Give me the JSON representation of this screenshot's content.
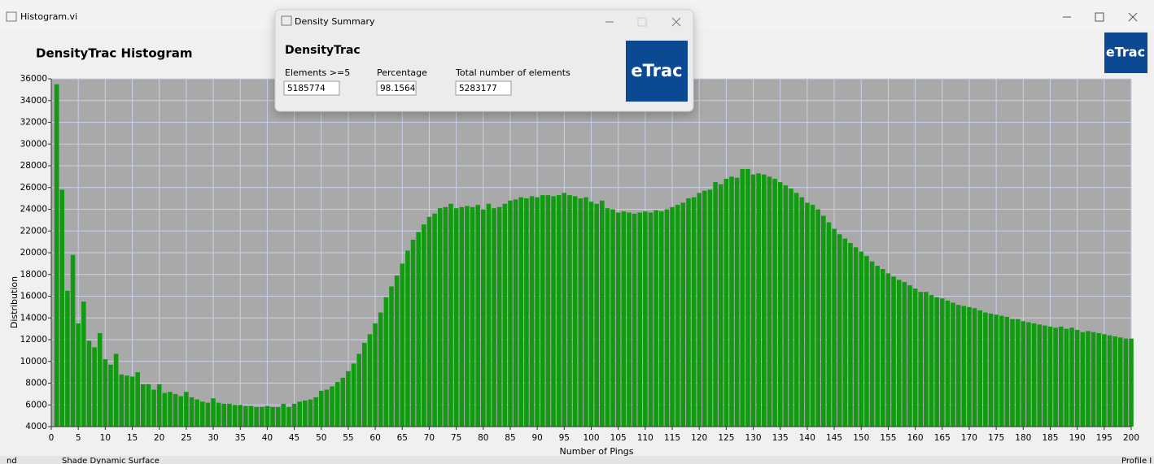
{
  "window": {
    "title": "Histogram.vi",
    "logo": "eTrac"
  },
  "dialog": {
    "title": "Density Summary",
    "heading": "DensityTrac",
    "logo": "eTrac",
    "fields": [
      {
        "label": "Elements >=5",
        "value": "5185774"
      },
      {
        "label": "Percentage",
        "value": "98.1564"
      },
      {
        "label": "Total number of elements",
        "value": "5283177"
      }
    ]
  },
  "statusbar": [
    "nd",
    "Shade Dynamic Surface",
    "Profile I"
  ],
  "chart_data": {
    "type": "bar",
    "title": "DensityTrac Histogram",
    "xlabel": "Number of Pings",
    "ylabel": "Distribution",
    "color": "#129a12",
    "grid": true,
    "xlim": [
      0,
      200
    ],
    "ylim": [
      4000,
      36000
    ],
    "xticks": [
      0,
      5,
      10,
      15,
      20,
      25,
      30,
      35,
      40,
      45,
      50,
      55,
      60,
      65,
      70,
      75,
      80,
      85,
      90,
      95,
      100,
      105,
      110,
      115,
      120,
      125,
      130,
      135,
      140,
      145,
      150,
      155,
      160,
      165,
      170,
      175,
      180,
      185,
      190,
      195,
      200
    ],
    "yticks": [
      4000,
      6000,
      8000,
      10000,
      12000,
      14000,
      16000,
      18000,
      20000,
      22000,
      24000,
      26000,
      28000,
      30000,
      32000,
      34000,
      36000
    ],
    "x": [
      1,
      2,
      3,
      4,
      5,
      6,
      7,
      8,
      9,
      10,
      11,
      12,
      13,
      14,
      15,
      16,
      17,
      18,
      19,
      20,
      21,
      22,
      23,
      24,
      25,
      26,
      27,
      28,
      29,
      30,
      31,
      32,
      33,
      34,
      35,
      36,
      37,
      38,
      39,
      40,
      41,
      42,
      43,
      44,
      45,
      46,
      47,
      48,
      49,
      50,
      51,
      52,
      53,
      54,
      55,
      56,
      57,
      58,
      59,
      60,
      61,
      62,
      63,
      64,
      65,
      66,
      67,
      68,
      69,
      70,
      71,
      72,
      73,
      74,
      75,
      76,
      77,
      78,
      79,
      80,
      81,
      82,
      83,
      84,
      85,
      86,
      87,
      88,
      89,
      90,
      91,
      92,
      93,
      94,
      95,
      96,
      97,
      98,
      99,
      100,
      101,
      102,
      103,
      104,
      105,
      106,
      107,
      108,
      109,
      110,
      111,
      112,
      113,
      114,
      115,
      116,
      117,
      118,
      119,
      120,
      121,
      122,
      123,
      124,
      125,
      126,
      127,
      128,
      129,
      130,
      131,
      132,
      133,
      134,
      135,
      136,
      137,
      138,
      139,
      140,
      141,
      142,
      143,
      144,
      145,
      146,
      147,
      148,
      149,
      150,
      151,
      152,
      153,
      154,
      155,
      156,
      157,
      158,
      159,
      160,
      161,
      162,
      163,
      164,
      165,
      166,
      167,
      168,
      169,
      170,
      171,
      172,
      173,
      174,
      175,
      176,
      177,
      178,
      179,
      180,
      181,
      182,
      183,
      184,
      185,
      186,
      187,
      188,
      189,
      190,
      191,
      192,
      193,
      194,
      195,
      196,
      197,
      198,
      199,
      200
    ],
    "values": [
      35500,
      25800,
      16500,
      19800,
      13500,
      15500,
      11900,
      11300,
      12600,
      10200,
      9700,
      10700,
      8800,
      8700,
      8600,
      9000,
      7900,
      7900,
      7400,
      7900,
      7100,
      7200,
      7000,
      6800,
      7200,
      6700,
      6500,
      6300,
      6200,
      6600,
      6200,
      6100,
      6100,
      6000,
      6000,
      5900,
      5900,
      5800,
      5800,
      5900,
      5800,
      5800,
      6100,
      5800,
      6100,
      6300,
      6400,
      6500,
      6700,
      7300,
      7400,
      7700,
      8100,
      8500,
      9100,
      9800,
      10700,
      11700,
      12500,
      13500,
      14500,
      15900,
      16900,
      17900,
      19000,
      20200,
      21200,
      21900,
      22600,
      23300,
      23600,
      24100,
      24200,
      24500,
      24100,
      24200,
      24300,
      24200,
      24400,
      24000,
      24500,
      24100,
      24200,
      24500,
      24800,
      24900,
      25100,
      25000,
      25200,
      25100,
      25300,
      25300,
      25200,
      25300,
      25500,
      25300,
      25200,
      25000,
      25100,
      24700,
      24500,
      24800,
      24100,
      24000,
      23700,
      23800,
      23700,
      23600,
      23700,
      23800,
      23700,
      23900,
      23800,
      24000,
      24200,
      24400,
      24600,
      25000,
      25100,
      25500,
      25700,
      25800,
      26500,
      26300,
      26800,
      27000,
      26900,
      27700,
      27700,
      27200,
      27300,
      27200,
      27000,
      26800,
      26500,
      26200,
      25900,
      25500,
      25100,
      24600,
      24400,
      24000,
      23400,
      22800,
      22200,
      21700,
      21300,
      20900,
      20500,
      20100,
      19700,
      19200,
      18800,
      18500,
      18100,
      17800,
      17500,
      17300,
      17000,
      16700,
      16400,
      16400,
      16100,
      15900,
      15800,
      15600,
      15400,
      15200,
      15100,
      15000,
      14900,
      14700,
      14500,
      14400,
      14300,
      14200,
      14100,
      13900,
      13900,
      13700,
      13600,
      13500,
      13400,
      13300,
      13200,
      13100,
      13200,
      13000,
      13100,
      12900,
      12700,
      12800,
      12700,
      12600,
      12500,
      12400,
      12300,
      12200,
      12100,
      12100
    ]
  }
}
